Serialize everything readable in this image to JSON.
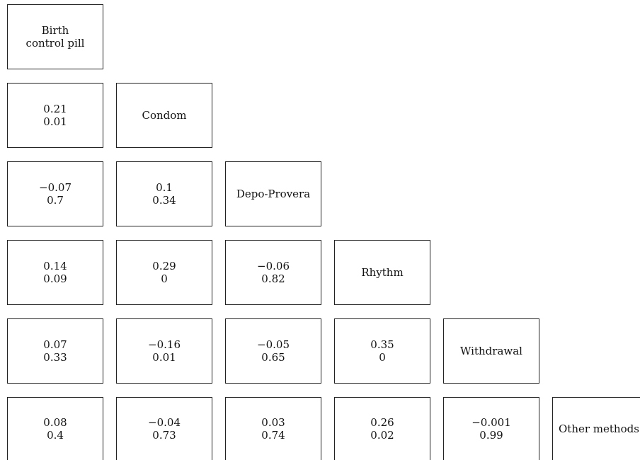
{
  "methods": [
    "Birth control pill",
    "Condom",
    "Depo-Provera",
    "Rhythm",
    "Withdrawal",
    "Other methods"
  ],
  "diagonal_labels": [
    [
      "Birth",
      "control pill"
    ],
    [
      "Condom"
    ],
    [
      "Depo-Provera"
    ],
    [
      "Rhythm"
    ],
    [
      "Withdrawal"
    ],
    [
      "Other methods"
    ]
  ],
  "rows": [
    {
      "method": "Birth control pill",
      "pairs": []
    },
    {
      "method": "Condom",
      "pairs": [
        {
          "with": "Birth control pill",
          "correlation": "0.21",
          "p_value": "0.01"
        }
      ]
    },
    {
      "method": "Depo-Provera",
      "pairs": [
        {
          "with": "Birth control pill",
          "correlation": "−0.07",
          "p_value": "0.7"
        },
        {
          "with": "Condom",
          "correlation": "0.1",
          "p_value": "0.34"
        }
      ]
    },
    {
      "method": "Rhythm",
      "pairs": [
        {
          "with": "Birth control pill",
          "correlation": "0.14",
          "p_value": "0.09"
        },
        {
          "with": "Condom",
          "correlation": "0.29",
          "p_value": "0"
        },
        {
          "with": "Depo-Provera",
          "correlation": "−0.06",
          "p_value": "0.82"
        }
      ]
    },
    {
      "method": "Withdrawal",
      "pairs": [
        {
          "with": "Birth control pill",
          "correlation": "0.07",
          "p_value": "0.33"
        },
        {
          "with": "Condom",
          "correlation": "−0.16",
          "p_value": "0.01"
        },
        {
          "with": "Depo-Provera",
          "correlation": "−0.05",
          "p_value": "0.65"
        },
        {
          "with": "Rhythm",
          "correlation": "0.35",
          "p_value": "0"
        }
      ]
    },
    {
      "method": "Other methods",
      "pairs": [
        {
          "with": "Birth control pill",
          "correlation": "0.08",
          "p_value": "0.4"
        },
        {
          "with": "Condom",
          "correlation": "−0.04",
          "p_value": "0.73"
        },
        {
          "with": "Depo-Provera",
          "correlation": "0.03",
          "p_value": "0.74"
        },
        {
          "with": "Rhythm",
          "correlation": "0.26",
          "p_value": "0.02"
        },
        {
          "with": "Withdrawal",
          "correlation": "−0.001",
          "p_value": "0.99"
        }
      ]
    }
  ]
}
